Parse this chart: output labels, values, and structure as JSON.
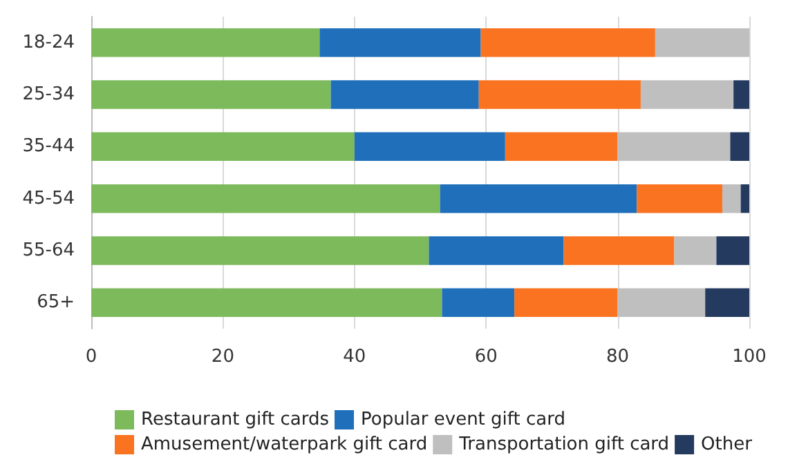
{
  "chart_data": {
    "type": "bar",
    "orientation": "horizontal",
    "stacked": true,
    "categories": [
      "18-24",
      "25-34",
      "35-44",
      "45-54",
      "55-64",
      "65+"
    ],
    "series": [
      {
        "name": "Restaurant gift cards",
        "color": "#7dba5c",
        "values": [
          34.7,
          36.4,
          40.0,
          53.0,
          51.3,
          53.3
        ]
      },
      {
        "name": "Popular event gift card",
        "color": "#1f6fba",
        "values": [
          24.5,
          22.5,
          22.9,
          29.9,
          20.5,
          11.0
        ]
      },
      {
        "name": "Amusement/waterpark gift card",
        "color": "#f97321",
        "values": [
          26.5,
          24.6,
          17.1,
          13.0,
          16.8,
          15.7
        ]
      },
      {
        "name": "Transportation gift card",
        "color": "#bfbfbf",
        "values": [
          14.3,
          14.1,
          17.1,
          2.8,
          6.4,
          13.3
        ]
      },
      {
        "name": "Other",
        "color": "#243a5e",
        "values": [
          0,
          2.4,
          2.9,
          1.3,
          5.0,
          6.7
        ]
      }
    ],
    "xlim": [
      0,
      100
    ],
    "xticks": [
      0,
      20,
      40,
      60,
      80,
      100
    ],
    "grid": "x",
    "legend": "bottom"
  }
}
